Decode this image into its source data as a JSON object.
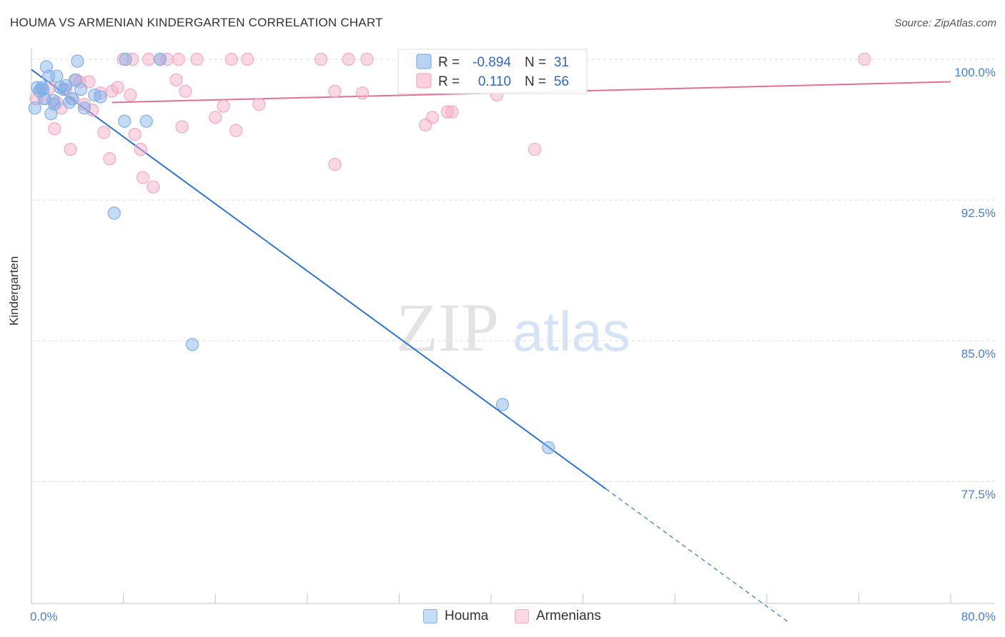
{
  "chart_data": {
    "type": "scatter",
    "title": "HOUMA VS ARMENIAN KINDERGARTEN CORRELATION CHART",
    "source": "Source: ZipAtlas.com",
    "xlabel": "",
    "ylabel": "Kindergarten",
    "xlim": [
      0,
      80
    ],
    "ylim": [
      71,
      100.8
    ],
    "x_tick_labels": [
      "0.0%",
      "80.0%"
    ],
    "y_ticks": [
      77.5,
      85.0,
      92.5,
      100.0
    ],
    "y_tick_labels": [
      "77.5%",
      "85.0%",
      "92.5%",
      "100.0%"
    ],
    "grid": true,
    "watermark": {
      "zip": "ZIP",
      "atlas": "atlas"
    },
    "series": [
      {
        "name": "Houma",
        "color": "#7fb0e8",
        "line_color": "#2f74d0",
        "R": "-0.894",
        "N": "31",
        "trend": {
          "x0": 0,
          "y0": 99.45,
          "x1": 50,
          "y1": 77.1,
          "dash_to_x": 66
        },
        "points": [
          [
            0.3,
            97.4
          ],
          [
            0.5,
            98.5
          ],
          [
            0.7,
            98.3
          ],
          [
            0.9,
            98.5
          ],
          [
            1.1,
            97.9
          ],
          [
            1.3,
            99.6
          ],
          [
            1.5,
            99.1
          ],
          [
            1.7,
            97.1
          ],
          [
            1.9,
            97.8
          ],
          [
            2.0,
            97.6
          ],
          [
            2.2,
            99.1
          ],
          [
            2.5,
            98.5
          ],
          [
            2.8,
            98.4
          ],
          [
            3.0,
            98.6
          ],
          [
            3.3,
            97.7
          ],
          [
            4.3,
            98.4
          ],
          [
            3.8,
            98.9
          ],
          [
            4.6,
            97.4
          ],
          [
            4.0,
            99.9
          ],
          [
            5.5,
            98.1
          ],
          [
            8.2,
            100.0
          ],
          [
            11.2,
            100.0
          ],
          [
            8.1,
            96.7
          ],
          [
            10.0,
            96.7
          ],
          [
            7.2,
            91.8
          ],
          [
            14.0,
            84.8
          ],
          [
            41.0,
            81.6
          ],
          [
            45.0,
            79.3
          ],
          [
            6.0,
            98.0
          ],
          [
            1.0,
            98.4
          ],
          [
            3.5,
            97.9
          ]
        ]
      },
      {
        "name": "Armenians",
        "color": "#f4a9c0",
        "line_color": "#e0709a",
        "R": "0.110",
        "N": "56",
        "trend": {
          "x0": 7,
          "y0": 97.7,
          "x1": 80,
          "y1": 98.8
        },
        "points": [
          [
            0.4,
            97.9
          ],
          [
            0.8,
            98.4
          ],
          [
            1.2,
            97.9
          ],
          [
            1.6,
            98.5
          ],
          [
            2.2,
            97.7
          ],
          [
            2.6,
            97.4
          ],
          [
            3.0,
            98.4
          ],
          [
            3.4,
            95.2
          ],
          [
            3.6,
            97.9
          ],
          [
            3.9,
            98.9
          ],
          [
            4.2,
            98.8
          ],
          [
            4.6,
            97.6
          ],
          [
            5.0,
            98.8
          ],
          [
            5.3,
            97.3
          ],
          [
            6.0,
            98.2
          ],
          [
            6.3,
            96.1
          ],
          [
            6.8,
            94.7
          ],
          [
            7.0,
            98.3
          ],
          [
            7.5,
            98.5
          ],
          [
            8.0,
            100.0
          ],
          [
            8.8,
            100.0
          ],
          [
            8.6,
            98.1
          ],
          [
            9.0,
            96.0
          ],
          [
            9.5,
            95.2
          ],
          [
            9.7,
            93.7
          ],
          [
            10.2,
            100.0
          ],
          [
            10.6,
            93.2
          ],
          [
            11.2,
            100.0
          ],
          [
            11.8,
            100.0
          ],
          [
            12.8,
            100.0
          ],
          [
            12.6,
            98.9
          ],
          [
            13.1,
            96.4
          ],
          [
            13.4,
            98.3
          ],
          [
            14.4,
            100.0
          ],
          [
            16.0,
            96.9
          ],
          [
            16.7,
            97.5
          ],
          [
            17.4,
            100.0
          ],
          [
            17.8,
            96.2
          ],
          [
            18.8,
            100.0
          ],
          [
            19.8,
            97.6
          ],
          [
            25.2,
            100.0
          ],
          [
            26.4,
            98.3
          ],
          [
            26.4,
            94.4
          ],
          [
            27.6,
            100.0
          ],
          [
            28.8,
            98.2
          ],
          [
            29.2,
            100.0
          ],
          [
            33.0,
            100.0
          ],
          [
            34.3,
            96.5
          ],
          [
            34.9,
            96.9
          ],
          [
            36.2,
            97.2
          ],
          [
            36.6,
            97.2
          ],
          [
            40.5,
            98.1
          ],
          [
            42.4,
            100.0
          ],
          [
            43.8,
            95.2
          ],
          [
            72.5,
            100.0
          ],
          [
            2.0,
            96.3
          ]
        ]
      }
    ]
  }
}
